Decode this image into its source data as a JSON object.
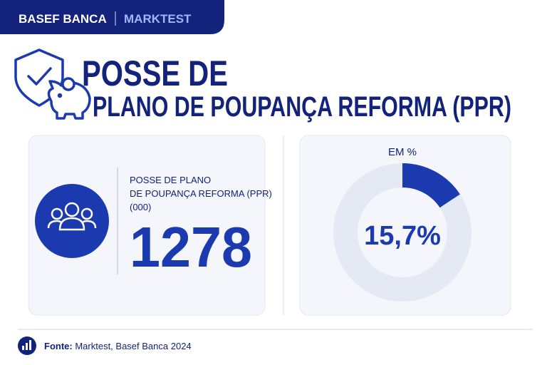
{
  "header": {
    "brand": "BASEF BANCA",
    "partner": "MARKTEST"
  },
  "title": {
    "line1": "POSSE DE",
    "line2": "PLANO DE POUPANÇA REFORMA (PPR)"
  },
  "stat": {
    "label_lines": [
      "POSSE DE PLANO",
      "DE POUPANÇA REFORMA (PPR)",
      "(000)"
    ],
    "value": 1278
  },
  "chart_data": {
    "type": "donut",
    "title": "EM %",
    "values": [
      15.7
    ],
    "value_labels": [
      "15,7%"
    ],
    "color": "#1b3ab0",
    "track_color": "#e4e9f3"
  },
  "footer": {
    "label": "Fonte:",
    "text": "Marktest, Basef Banca 2024"
  }
}
